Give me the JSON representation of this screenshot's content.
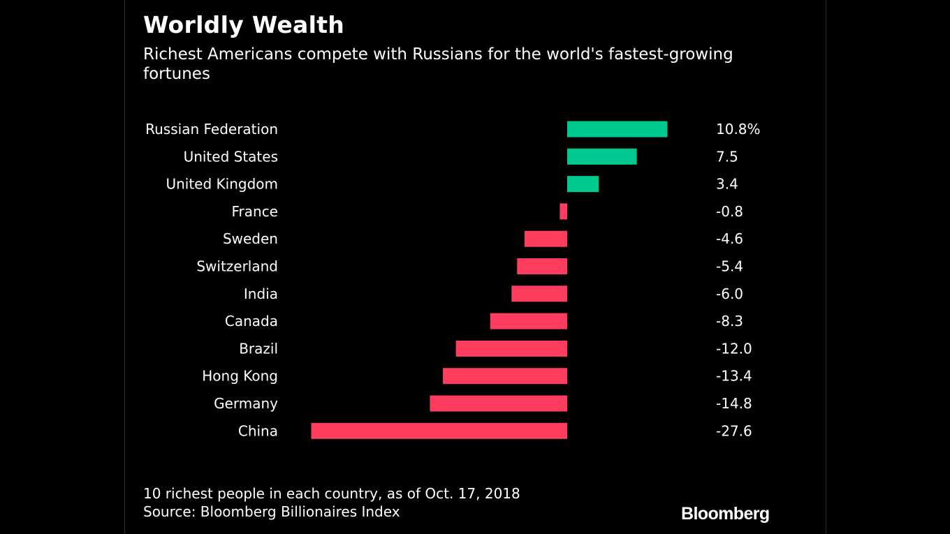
{
  "header": {
    "title": "Worldly Wealth",
    "subtitle": "Richest Americans compete with Russians for the world's fastest-growing fortunes"
  },
  "footer": {
    "note": "10 richest people in each country, as of Oct. 17, 2018",
    "source": "Source: Bloomberg Billionaires Index",
    "brand": "Bloomberg"
  },
  "colors": {
    "background": "#000000",
    "positive": "#00c990",
    "negative": "#ff3d5e",
    "text": "#ffffff"
  },
  "chart_data": {
    "type": "bar",
    "orientation": "horizontal",
    "title": "Worldly Wealth",
    "subtitle": "Richest Americans compete with Russians for the world's fastest-growing fortunes",
    "categories": [
      "Russian Federation",
      "United States",
      "United Kingdom",
      "France",
      "Sweden",
      "Switzerland",
      "India",
      "Canada",
      "Brazil",
      "Hong Kong",
      "Germany",
      "China"
    ],
    "values": [
      10.8,
      7.5,
      3.4,
      -0.8,
      -4.6,
      -5.4,
      -6.0,
      -8.3,
      -12.0,
      -13.4,
      -14.8,
      -27.6
    ],
    "value_labels": [
      "10.8%",
      "7.5",
      "3.4",
      "-0.8",
      "-4.6",
      "-5.4",
      "-6.0",
      "-8.3",
      "-12.0",
      "-13.4",
      "-14.8",
      "-27.6"
    ],
    "xlim": [
      -27.6,
      10.8
    ],
    "grid": false,
    "legend": "none"
  }
}
